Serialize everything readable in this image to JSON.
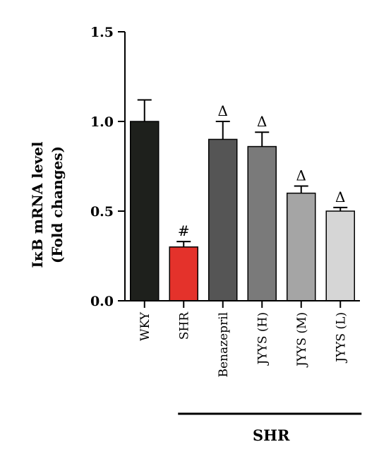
{
  "chart_data": {
    "type": "bar",
    "ylabel_line1": "IκB mRNA level",
    "ylabel_line2": "(Fold changes)",
    "categories": [
      "WKY",
      "SHR",
      "Benazepril",
      "JYYS (H)",
      "JYYS (M)",
      "JYYS (L)"
    ],
    "values": [
      1.0,
      0.3,
      0.9,
      0.86,
      0.6,
      0.5
    ],
    "errors": [
      0.12,
      0.03,
      0.1,
      0.08,
      0.04,
      0.02
    ],
    "colors": [
      "#1e201c",
      "#e4322b",
      "#555555",
      "#7a7a7a",
      "#a5a5a5",
      "#d6d6d6"
    ],
    "annotations": [
      "",
      "#",
      "Δ",
      "Δ",
      "Δ",
      "Δ"
    ],
    "ylim": [
      0,
      1.5
    ],
    "yticks": [
      0.0,
      0.5,
      1.0,
      1.5
    ],
    "ytick_labels": [
      "0.0",
      "0.5",
      "1.0",
      "1.5"
    ],
    "group_label": "SHR",
    "group_span_start_index": 1,
    "grid": false
  }
}
